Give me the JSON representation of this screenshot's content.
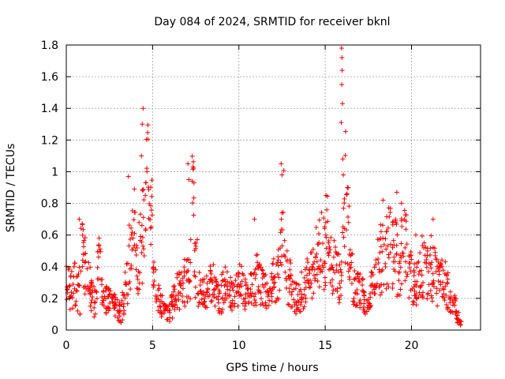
{
  "chart_data": {
    "type": "scatter",
    "title": "Day 084 of 2024, SRMTID for receiver bknl",
    "xlabel": "GPS time / hours",
    "ylabel": "SRMTID / TECUs",
    "xlim": [
      0,
      24
    ],
    "ylim": [
      0,
      1.8
    ],
    "xticks": [
      0,
      5,
      10,
      15,
      20
    ],
    "xtick_labels": [
      "0",
      "5",
      "10",
      "15",
      "20"
    ],
    "yticks": [
      0,
      0.2,
      0.4,
      0.6,
      0.8,
      1.0,
      1.2,
      1.4,
      1.6,
      1.8
    ],
    "ytick_labels": [
      "0",
      "0.2",
      "0.4",
      "0.6",
      "0.8",
      "1",
      "1.2",
      "1.4",
      "1.6",
      "1.8"
    ],
    "grid": true,
    "marker": "+",
    "marker_color": "#ff0000",
    "x_extent_hours": [
      0,
      22.9
    ],
    "series": [
      {
        "name": "SRMTID",
        "x": [
          0.0,
          0.2,
          0.4,
          0.6,
          0.8,
          1.0,
          1.2,
          1.4,
          1.6,
          1.8,
          2.0,
          2.2,
          2.4,
          2.6,
          2.8,
          3.0,
          3.2,
          3.4,
          3.6,
          3.8,
          4.0,
          4.2,
          4.4,
          4.6,
          4.8,
          5.0,
          5.2,
          5.4,
          5.6,
          5.8,
          6.0,
          6.2,
          6.4,
          6.6,
          6.8,
          7.0,
          7.2,
          7.4,
          7.6,
          7.8,
          8.0,
          8.2,
          8.4,
          8.6,
          8.8,
          9.0,
          9.2,
          9.4,
          9.6,
          9.8,
          10.0,
          10.2,
          10.4,
          10.6,
          10.8,
          11.0,
          11.2,
          11.4,
          11.6,
          11.8,
          12.0,
          12.2,
          12.4,
          12.6,
          12.8,
          13.0,
          13.2,
          13.4,
          13.6,
          13.8,
          14.0,
          14.2,
          14.4,
          14.6,
          14.8,
          15.0,
          15.2,
          15.4,
          15.6,
          15.8,
          16.0,
          16.2,
          16.4,
          16.6,
          16.8,
          17.0,
          17.2,
          17.4,
          17.6,
          17.8,
          18.0,
          18.2,
          18.4,
          18.6,
          18.8,
          19.0,
          19.2,
          19.4,
          19.6,
          19.8,
          20.0,
          20.2,
          20.4,
          20.6,
          20.8,
          21.0,
          21.2,
          21.4,
          21.6,
          21.8,
          22.0,
          22.2,
          22.4,
          22.6,
          22.8
        ],
        "y": [
          0.3,
          0.25,
          0.3,
          0.25,
          0.55,
          0.4,
          0.3,
          0.2,
          0.2,
          0.45,
          0.25,
          0.2,
          0.2,
          0.15,
          0.15,
          0.12,
          0.15,
          0.3,
          0.45,
          0.75,
          0.4,
          0.5,
          0.6,
          1.0,
          0.7,
          0.35,
          0.2,
          0.15,
          0.12,
          0.1,
          0.15,
          0.2,
          0.25,
          0.25,
          0.3,
          0.3,
          0.8,
          0.4,
          0.3,
          0.25,
          0.25,
          0.3,
          0.3,
          0.25,
          0.2,
          0.25,
          0.3,
          0.25,
          0.2,
          0.25,
          0.3,
          0.25,
          0.2,
          0.25,
          0.3,
          0.35,
          0.3,
          0.25,
          0.2,
          0.3,
          0.3,
          0.35,
          0.7,
          0.4,
          0.3,
          0.25,
          0.2,
          0.2,
          0.25,
          0.3,
          0.35,
          0.4,
          0.45,
          0.5,
          0.5,
          0.55,
          0.45,
          0.4,
          0.35,
          0.3,
          0.8,
          0.6,
          0.45,
          0.3,
          0.25,
          0.25,
          0.2,
          0.15,
          0.25,
          0.35,
          0.4,
          0.45,
          0.5,
          0.55,
          0.5,
          0.45,
          0.4,
          0.55,
          0.5,
          0.35,
          0.3,
          0.3,
          0.35,
          0.4,
          0.35,
          0.4,
          0.35,
          0.3,
          0.35,
          0.3,
          0.25,
          0.2,
          0.15,
          0.08,
          0.05
        ],
        "spread": [
          0.12,
          0.12,
          0.15,
          0.15,
          0.18,
          0.2,
          0.15,
          0.12,
          0.12,
          0.15,
          0.1,
          0.1,
          0.1,
          0.08,
          0.08,
          0.08,
          0.1,
          0.15,
          0.25,
          0.3,
          0.2,
          0.25,
          0.3,
          0.45,
          0.3,
          0.15,
          0.1,
          0.08,
          0.08,
          0.06,
          0.08,
          0.1,
          0.12,
          0.12,
          0.15,
          0.15,
          0.3,
          0.2,
          0.15,
          0.12,
          0.12,
          0.12,
          0.12,
          0.1,
          0.1,
          0.12,
          0.12,
          0.12,
          0.1,
          0.12,
          0.12,
          0.12,
          0.1,
          0.12,
          0.15,
          0.15,
          0.15,
          0.12,
          0.1,
          0.12,
          0.15,
          0.2,
          0.35,
          0.2,
          0.15,
          0.12,
          0.1,
          0.1,
          0.12,
          0.15,
          0.15,
          0.2,
          0.2,
          0.25,
          0.25,
          0.3,
          0.2,
          0.2,
          0.15,
          0.15,
          0.5,
          0.3,
          0.2,
          0.15,
          0.12,
          0.12,
          0.1,
          0.08,
          0.12,
          0.15,
          0.2,
          0.25,
          0.25,
          0.3,
          0.25,
          0.25,
          0.2,
          0.3,
          0.25,
          0.15,
          0.15,
          0.15,
          0.15,
          0.2,
          0.2,
          0.2,
          0.2,
          0.15,
          0.15,
          0.15,
          0.12,
          0.1,
          0.08,
          0.05,
          0.03
        ]
      }
    ],
    "peaks": [
      {
        "x": 4.45,
        "y": 1.4
      },
      {
        "x": 4.4,
        "y": 1.3
      },
      {
        "x": 4.35,
        "y": 1.1
      },
      {
        "x": 4.6,
        "y": 0.93
      },
      {
        "x": 3.6,
        "y": 0.97
      },
      {
        "x": 7.05,
        "y": 1.05
      },
      {
        "x": 7.1,
        "y": 0.95
      },
      {
        "x": 12.45,
        "y": 1.05
      },
      {
        "x": 12.5,
        "y": 0.98
      },
      {
        "x": 15.95,
        "y": 1.78
      },
      {
        "x": 15.97,
        "y": 1.72
      },
      {
        "x": 15.98,
        "y": 1.64
      },
      {
        "x": 15.96,
        "y": 1.55
      },
      {
        "x": 16.0,
        "y": 1.43
      },
      {
        "x": 15.93,
        "y": 1.31
      },
      {
        "x": 16.02,
        "y": 1.08
      },
      {
        "x": 16.05,
        "y": 0.98
      },
      {
        "x": 15.05,
        "y": 0.85
      },
      {
        "x": 16.3,
        "y": 0.9
      },
      {
        "x": 18.35,
        "y": 0.82
      },
      {
        "x": 19.15,
        "y": 0.87
      },
      {
        "x": 0.75,
        "y": 0.7
      },
      {
        "x": 1.9,
        "y": 0.58
      },
      {
        "x": 10.9,
        "y": 0.7
      },
      {
        "x": 21.25,
        "y": 0.7
      },
      {
        "x": 20.25,
        "y": 0.6
      }
    ]
  }
}
